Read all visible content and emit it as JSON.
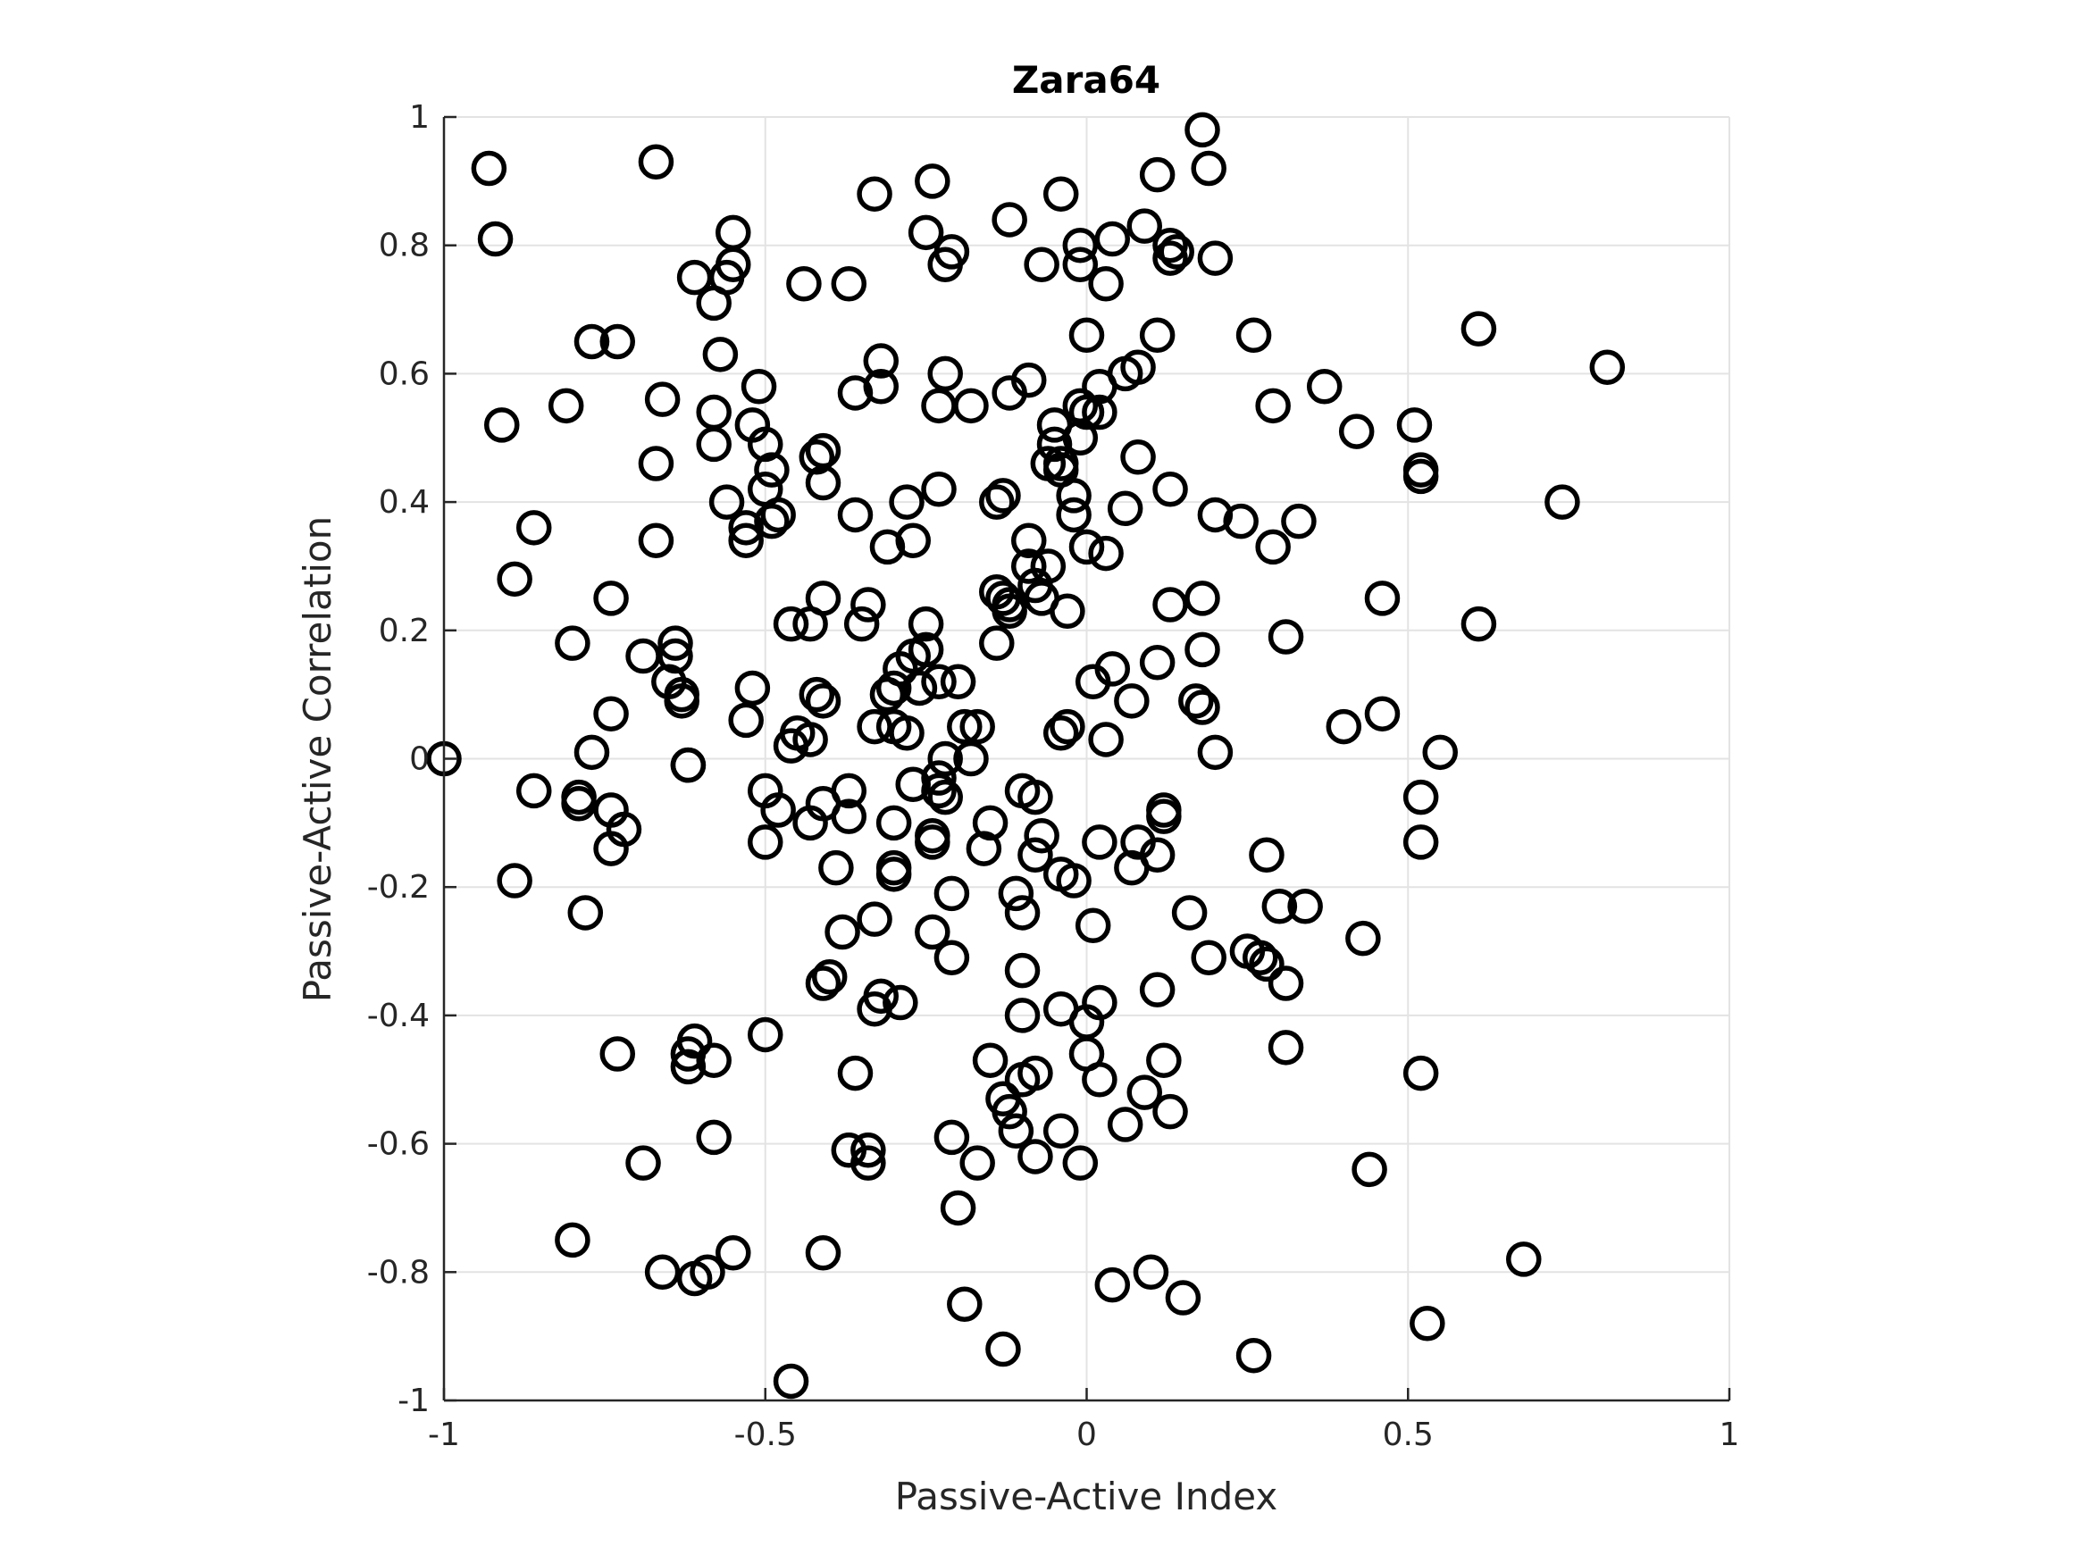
{
  "chart_data": {
    "type": "scatter",
    "title": "Zara64",
    "xlabel": "Passive-Active Index",
    "ylabel": "Passive-Active Correlation",
    "xlim": [
      -1,
      1
    ],
    "ylim": [
      -1,
      1
    ],
    "xticks": [
      -1,
      -0.5,
      0,
      0.5,
      1
    ],
    "yticks": [
      -1,
      -0.8,
      -0.6,
      -0.4,
      -0.2,
      0,
      0.2,
      0.4,
      0.6,
      0.8,
      1
    ],
    "xtick_labels": [
      "-1",
      "-0.5",
      "0",
      "0.5",
      "1"
    ],
    "ytick_labels": [
      "-1",
      "-0.8",
      "-0.6",
      "-0.4",
      "-0.2",
      "0",
      "0.2",
      "0.4",
      "0.6",
      "0.8",
      "1"
    ],
    "grid": true,
    "marker": "open-circle",
    "marker_color": "#000000",
    "points": [
      [
        -0.93,
        0.92
      ],
      [
        -0.92,
        0.81
      ],
      [
        -0.91,
        0.52
      ],
      [
        -0.86,
        0.36
      ],
      [
        -0.89,
        0.28
      ],
      [
        -0.81,
        0.55
      ],
      [
        -0.77,
        0.65
      ],
      [
        -0.73,
        0.65
      ],
      [
        -0.67,
        0.93
      ],
      [
        -0.66,
        0.56
      ],
      [
        -0.67,
        0.46
      ],
      [
        -0.67,
        0.34
      ],
      [
        -0.74,
        0.25
      ],
      [
        -0.8,
        0.18
      ],
      [
        -0.69,
        0.16
      ],
      [
        -0.64,
        0.18
      ],
      [
        -0.64,
        0.16
      ],
      [
        -0.65,
        0.12
      ],
      [
        -0.63,
        0.1
      ],
      [
        -0.63,
        0.09
      ],
      [
        -0.74,
        0.07
      ],
      [
        -0.77,
        0.01
      ],
      [
        -1.0,
        0.0
      ],
      [
        -0.62,
        -0.01
      ],
      [
        -0.62,
        -0.01
      ],
      [
        -0.86,
        -0.05
      ],
      [
        -0.79,
        -0.06
      ],
      [
        -0.79,
        -0.07
      ],
      [
        -0.74,
        -0.08
      ],
      [
        -0.74,
        -0.14
      ],
      [
        -0.72,
        -0.11
      ],
      [
        -0.89,
        -0.19
      ],
      [
        -0.78,
        -0.24
      ],
      [
        -0.73,
        -0.46
      ],
      [
        -0.62,
        -0.46
      ],
      [
        -0.62,
        -0.48
      ],
      [
        -0.61,
        -0.44
      ],
      [
        -0.58,
        -0.47
      ],
      [
        -0.69,
        -0.63
      ],
      [
        -0.58,
        -0.59
      ],
      [
        -0.8,
        -0.75
      ],
      [
        -0.66,
        -0.8
      ],
      [
        -0.61,
        -0.81
      ],
      [
        -0.59,
        -0.8
      ],
      [
        -0.55,
        -0.77
      ],
      [
        -0.46,
        -0.97
      ],
      [
        -0.55,
        0.82
      ],
      [
        -0.55,
        0.77
      ],
      [
        -0.56,
        0.75
      ],
      [
        -0.61,
        0.75
      ],
      [
        -0.58,
        0.71
      ],
      [
        -0.57,
        0.63
      ],
      [
        -0.51,
        0.58
      ],
      [
        -0.58,
        0.54
      ],
      [
        -0.58,
        0.49
      ],
      [
        -0.52,
        0.52
      ],
      [
        -0.5,
        0.49
      ],
      [
        -0.49,
        0.45
      ],
      [
        -0.5,
        0.42
      ],
      [
        -0.56,
        0.4
      ],
      [
        -0.53,
        0.36
      ],
      [
        -0.53,
        0.34
      ],
      [
        -0.49,
        0.37
      ],
      [
        -0.48,
        0.38
      ],
      [
        -0.44,
        0.74
      ],
      [
        -0.37,
        0.74
      ],
      [
        -0.36,
        0.57
      ],
      [
        -0.41,
        0.48
      ],
      [
        -0.42,
        0.47
      ],
      [
        -0.41,
        0.43
      ],
      [
        -0.36,
        0.38
      ],
      [
        -0.41,
        0.25
      ],
      [
        -0.34,
        0.24
      ],
      [
        -0.35,
        0.21
      ],
      [
        -0.46,
        0.21
      ],
      [
        -0.43,
        0.21
      ],
      [
        -0.52,
        0.11
      ],
      [
        -0.42,
        0.1
      ],
      [
        -0.41,
        0.09
      ],
      [
        -0.53,
        0.06
      ],
      [
        -0.45,
        0.04
      ],
      [
        -0.43,
        0.03
      ],
      [
        -0.46,
        0.02
      ],
      [
        -0.5,
        -0.05
      ],
      [
        -0.48,
        -0.08
      ],
      [
        -0.5,
        -0.13
      ],
      [
        -0.43,
        -0.1
      ],
      [
        -0.41,
        -0.07
      ],
      [
        -0.37,
        -0.05
      ],
      [
        -0.37,
        -0.09
      ],
      [
        -0.39,
        -0.17
      ],
      [
        -0.38,
        -0.27
      ],
      [
        -0.41,
        -0.35
      ],
      [
        -0.4,
        -0.34
      ],
      [
        -0.36,
        -0.49
      ],
      [
        -0.5,
        -0.43
      ],
      [
        -0.37,
        -0.61
      ],
      [
        -0.34,
        -0.61
      ],
      [
        -0.34,
        -0.63
      ],
      [
        -0.41,
        -0.77
      ],
      [
        -0.33,
        0.88
      ],
      [
        -0.32,
        0.62
      ],
      [
        -0.32,
        0.58
      ],
      [
        -0.31,
        0.33
      ],
      [
        -0.27,
        0.34
      ],
      [
        -0.28,
        0.4
      ],
      [
        -0.24,
        0.9
      ],
      [
        -0.25,
        0.82
      ],
      [
        -0.21,
        0.79
      ],
      [
        -0.22,
        0.77
      ],
      [
        -0.22,
        0.6
      ],
      [
        -0.23,
        0.55
      ],
      [
        -0.18,
        0.55
      ],
      [
        -0.23,
        0.42
      ],
      [
        -0.25,
        0.21
      ],
      [
        -0.25,
        0.17
      ],
      [
        -0.27,
        0.16
      ],
      [
        -0.29,
        0.14
      ],
      [
        -0.3,
        0.11
      ],
      [
        -0.31,
        0.1
      ],
      [
        -0.33,
        0.05
      ],
      [
        -0.3,
        0.05
      ],
      [
        -0.28,
        0.04
      ],
      [
        -0.26,
        0.11
      ],
      [
        -0.23,
        0.12
      ],
      [
        -0.2,
        0.12
      ],
      [
        -0.19,
        0.05
      ],
      [
        -0.17,
        0.05
      ],
      [
        -0.18,
        0.0
      ],
      [
        -0.22,
        0.0
      ],
      [
        -0.23,
        -0.03
      ],
      [
        -0.27,
        -0.04
      ],
      [
        -0.23,
        -0.05
      ],
      [
        -0.22,
        -0.06
      ],
      [
        -0.3,
        -0.1
      ],
      [
        -0.24,
        -0.12
      ],
      [
        -0.24,
        -0.13
      ],
      [
        -0.16,
        -0.14
      ],
      [
        -0.15,
        -0.1
      ],
      [
        -0.21,
        -0.21
      ],
      [
        -0.3,
        -0.17
      ],
      [
        -0.3,
        -0.18
      ],
      [
        -0.33,
        -0.25
      ],
      [
        -0.24,
        -0.27
      ],
      [
        -0.21,
        -0.31
      ],
      [
        -0.32,
        -0.37
      ],
      [
        -0.33,
        -0.39
      ],
      [
        -0.29,
        -0.38
      ],
      [
        -0.21,
        -0.59
      ],
      [
        -0.17,
        -0.63
      ],
      [
        -0.2,
        -0.7
      ],
      [
        -0.19,
        -0.85
      ],
      [
        -0.13,
        -0.92
      ],
      [
        -0.15,
        -0.47
      ],
      [
        -0.13,
        -0.53
      ],
      [
        -0.12,
        -0.55
      ],
      [
        -0.11,
        -0.58
      ],
      [
        -0.08,
        -0.62
      ],
      [
        -0.08,
        -0.49
      ],
      [
        -0.1,
        -0.5
      ],
      [
        -0.1,
        -0.4
      ],
      [
        -0.1,
        -0.33
      ],
      [
        -0.1,
        -0.24
      ],
      [
        -0.11,
        -0.21
      ],
      [
        -0.08,
        -0.15
      ],
      [
        -0.07,
        -0.12
      ],
      [
        -0.08,
        -0.06
      ],
      [
        -0.1,
        -0.05
      ],
      [
        -0.14,
        0.26
      ],
      [
        -0.13,
        0.25
      ],
      [
        -0.12,
        0.23
      ],
      [
        -0.12,
        0.24
      ],
      [
        -0.14,
        0.18
      ],
      [
        -0.13,
        0.41
      ],
      [
        -0.14,
        0.4
      ],
      [
        -0.09,
        0.34
      ],
      [
        -0.09,
        0.3
      ],
      [
        -0.06,
        0.3
      ],
      [
        -0.07,
        0.25
      ],
      [
        -0.08,
        0.27
      ],
      [
        -0.03,
        0.23
      ],
      [
        -0.12,
        0.84
      ],
      [
        -0.04,
        0.88
      ],
      [
        -0.07,
        0.77
      ],
      [
        -0.12,
        0.57
      ],
      [
        -0.09,
        0.59
      ],
      [
        -0.05,
        0.52
      ],
      [
        -0.05,
        0.49
      ],
      [
        -0.04,
        0.46
      ],
      [
        -0.06,
        0.46
      ],
      [
        -0.04,
        0.45
      ],
      [
        -0.02,
        0.41
      ],
      [
        -0.02,
        0.38
      ],
      [
        0.0,
        0.33
      ],
      [
        0.03,
        0.32
      ],
      [
        -0.01,
        0.8
      ],
      [
        -0.01,
        0.77
      ],
      [
        0.03,
        0.74
      ],
      [
        0.04,
        0.81
      ],
      [
        0.09,
        0.83
      ],
      [
        0.13,
        0.8
      ],
      [
        0.14,
        0.79
      ],
      [
        0.13,
        0.78
      ],
      [
        0.2,
        0.78
      ],
      [
        0.11,
        0.91
      ],
      [
        0.18,
        0.98
      ],
      [
        0.19,
        0.92
      ],
      [
        0.0,
        0.66
      ],
      [
        0.11,
        0.66
      ],
      [
        0.26,
        0.66
      ],
      [
        0.02,
        0.58
      ],
      [
        0.06,
        0.6
      ],
      [
        0.08,
        0.61
      ],
      [
        -0.01,
        0.55
      ],
      [
        0.0,
        0.54
      ],
      [
        0.02,
        0.54
      ],
      [
        -0.01,
        0.5
      ],
      [
        0.08,
        0.47
      ],
      [
        0.06,
        0.39
      ],
      [
        0.13,
        0.42
      ],
      [
        0.2,
        0.38
      ],
      [
        0.24,
        0.37
      ],
      [
        0.29,
        0.33
      ],
      [
        0.33,
        0.37
      ],
      [
        0.29,
        0.55
      ],
      [
        0.37,
        0.58
      ],
      [
        0.42,
        0.51
      ],
      [
        0.51,
        0.52
      ],
      [
        0.52,
        0.44
      ],
      [
        0.52,
        0.45
      ],
      [
        0.61,
        0.67
      ],
      [
        0.81,
        0.61
      ],
      [
        0.74,
        0.4
      ],
      [
        0.13,
        0.24
      ],
      [
        0.18,
        0.25
      ],
      [
        0.31,
        0.19
      ],
      [
        0.46,
        0.25
      ],
      [
        0.61,
        0.21
      ],
      [
        0.11,
        0.15
      ],
      [
        0.18,
        0.17
      ],
      [
        0.04,
        0.14
      ],
      [
        0.01,
        0.12
      ],
      [
        0.07,
        0.09
      ],
      [
        0.17,
        0.09
      ],
      [
        0.18,
        0.08
      ],
      [
        0.2,
        0.01
      ],
      [
        -0.03,
        0.05
      ],
      [
        -0.04,
        0.04
      ],
      [
        0.03,
        0.03
      ],
      [
        0.4,
        0.05
      ],
      [
        0.46,
        0.07
      ],
      [
        0.55,
        0.01
      ],
      [
        0.52,
        -0.06
      ],
      [
        0.52,
        -0.13
      ],
      [
        0.12,
        -0.08
      ],
      [
        0.12,
        -0.09
      ],
      [
        0.08,
        -0.13
      ],
      [
        0.11,
        -0.15
      ],
      [
        0.02,
        -0.13
      ],
      [
        0.07,
        -0.17
      ],
      [
        -0.04,
        -0.18
      ],
      [
        -0.02,
        -0.19
      ],
      [
        0.01,
        -0.26
      ],
      [
        0.16,
        -0.24
      ],
      [
        0.28,
        -0.15
      ],
      [
        0.3,
        -0.23
      ],
      [
        0.34,
        -0.23
      ],
      [
        0.19,
        -0.31
      ],
      [
        0.25,
        -0.3
      ],
      [
        0.27,
        -0.31
      ],
      [
        0.28,
        -0.32
      ],
      [
        0.31,
        -0.35
      ],
      [
        0.43,
        -0.28
      ],
      [
        0.11,
        -0.36
      ],
      [
        -0.04,
        -0.39
      ],
      [
        0.02,
        -0.38
      ],
      [
        0.0,
        -0.41
      ],
      [
        0.0,
        -0.46
      ],
      [
        0.02,
        -0.5
      ],
      [
        0.09,
        -0.52
      ],
      [
        0.12,
        -0.47
      ],
      [
        0.13,
        -0.55
      ],
      [
        0.06,
        -0.57
      ],
      [
        -0.04,
        -0.58
      ],
      [
        -0.01,
        -0.63
      ],
      [
        0.31,
        -0.45
      ],
      [
        0.52,
        -0.49
      ],
      [
        0.44,
        -0.64
      ],
      [
        0.04,
        -0.82
      ],
      [
        0.1,
        -0.8
      ],
      [
        0.15,
        -0.84
      ],
      [
        0.26,
        -0.93
      ],
      [
        0.53,
        -0.88
      ],
      [
        0.68,
        -0.78
      ]
    ]
  }
}
